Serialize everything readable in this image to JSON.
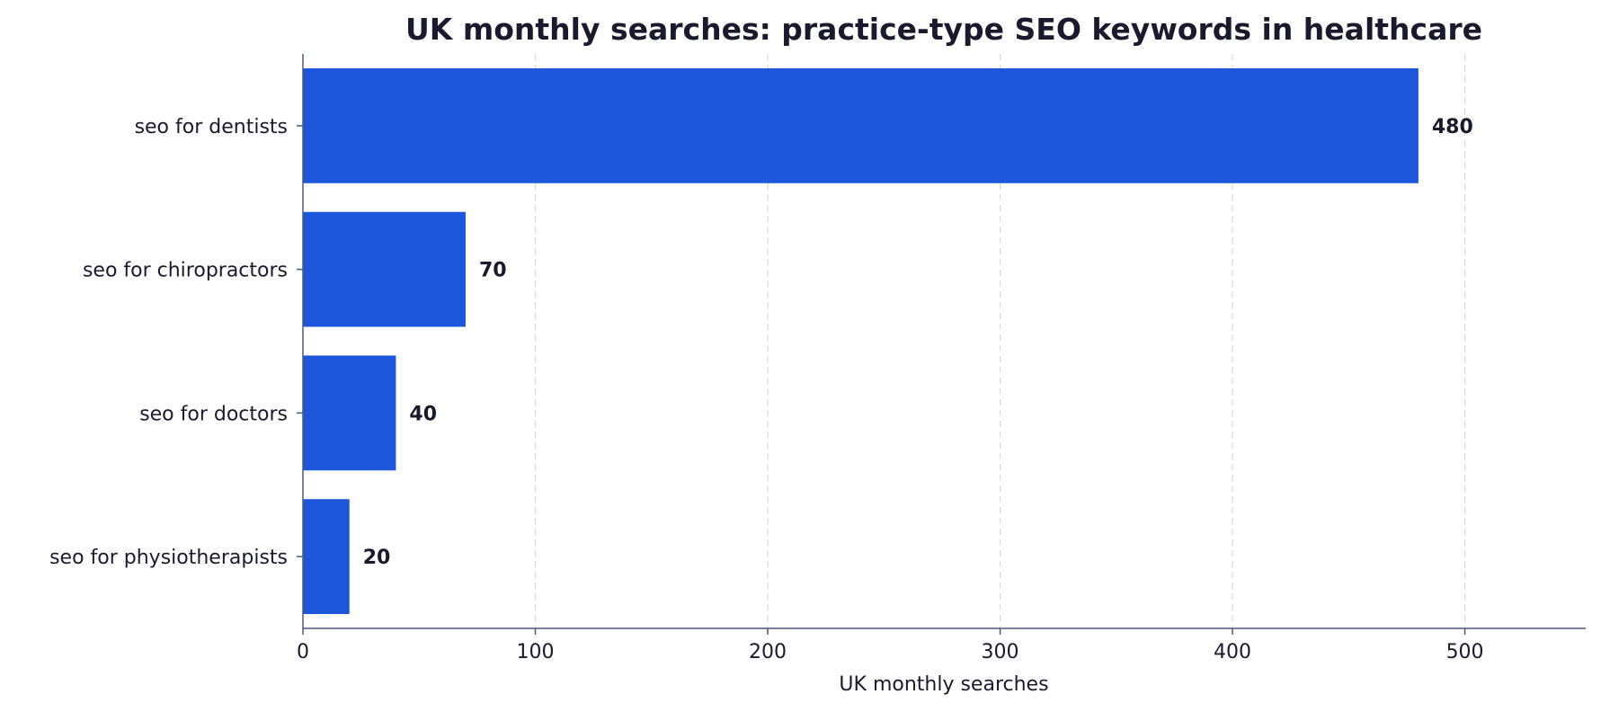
{
  "chart_data": {
    "type": "bar",
    "orientation": "horizontal",
    "title": "UK monthly searches: practice-type SEO keywords in healthcare",
    "xlabel": "UK monthly searches",
    "ylabel": "",
    "categories": [
      "seo for dentists",
      "seo for chiropractors",
      "seo for doctors",
      "seo for physiotherapists"
    ],
    "values": [
      480,
      70,
      40,
      20
    ],
    "value_labels": [
      "480",
      "70",
      "40",
      "20"
    ],
    "xlim": [
      0,
      552
    ],
    "xticks": [
      0,
      100,
      200,
      300,
      400,
      500
    ],
    "xtick_labels": [
      "0",
      "100",
      "200",
      "300",
      "400",
      "500"
    ],
    "grid": "x-dashed",
    "legend": "none",
    "bar_color": "#1c56db"
  }
}
